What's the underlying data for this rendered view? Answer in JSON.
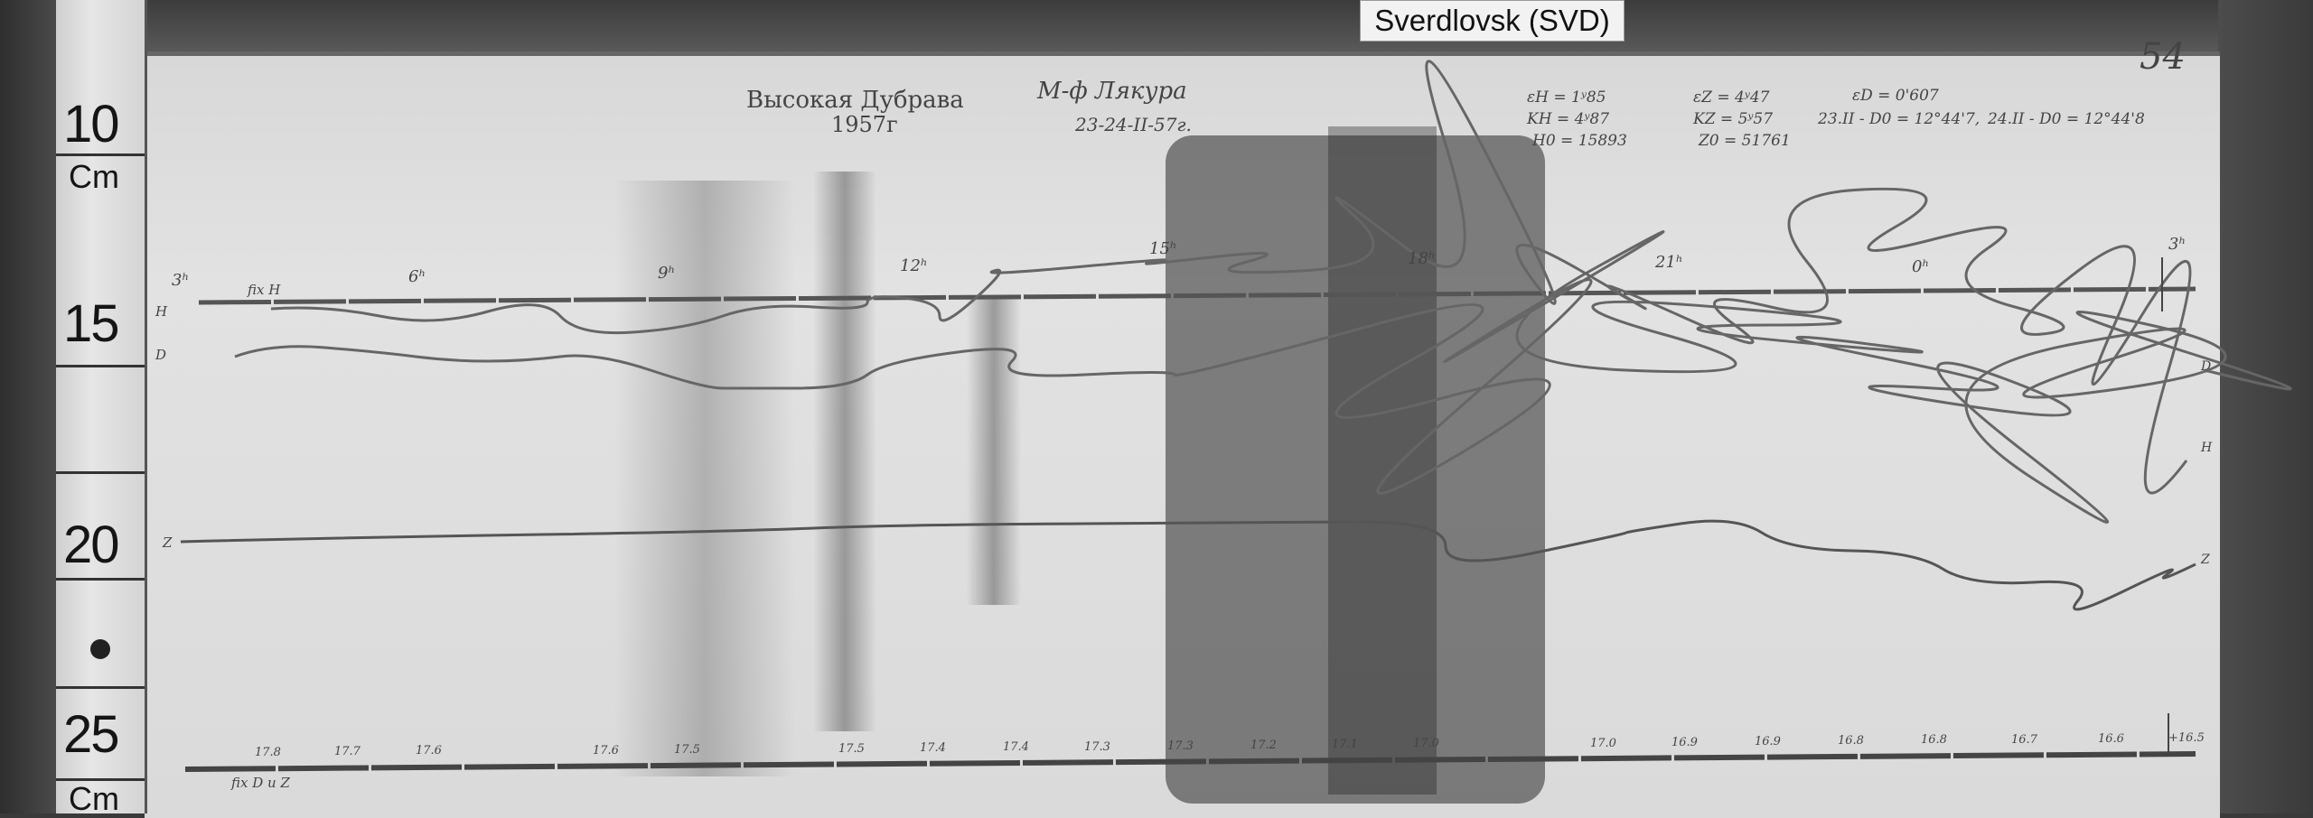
{
  "label_tag": "Sverdlovsk (SVD)",
  "sheet_number": "54",
  "ruler": {
    "marks": [
      "10",
      "15",
      "20",
      "25"
    ],
    "unit": "Cm"
  },
  "header": {
    "station": "Высокая Дубрава",
    "year": "1957г",
    "observer": "М-ф Лякура",
    "dates": "23-24-II-57г."
  },
  "constants": {
    "eH": "εH = 1ʸ85",
    "KH": "KH = 4ʸ87",
    "H0": "H0 = 15893",
    "eZ": "εZ = 4ʸ47",
    "KZ": "KZ = 5ʸ57",
    "Z0": "Z0 = 51761",
    "eD": "εD = 0'607",
    "D0_23": "23.II - D0 = 12°44'7,",
    "D0_24": "24.II - D0 = 12°44'8"
  },
  "hours": [
    "3ʰ",
    "6ʰ",
    "9ʰ",
    "12ʰ",
    "15ʰ",
    "18ʰ",
    "21ʰ",
    "0ʰ",
    "3ʰ"
  ],
  "trace_labels": {
    "fix_h": "fix H",
    "h": "H",
    "d": "D",
    "z": "Z",
    "h_right": "H",
    "d_right": "D",
    "z_right": "Z",
    "fix_dz": "fix D и Z"
  },
  "temperature_scale": [
    "17.8",
    "17.7",
    "17.6",
    "17.6",
    "17.5",
    "17.5",
    "17.4",
    "17.4",
    "17.3",
    "17.3",
    "17.2",
    "17.1",
    "17.0",
    "17.0",
    "16.9",
    "16.9",
    "16.8",
    "16.8",
    "16.7",
    "16.6",
    "+16.5"
  ]
}
